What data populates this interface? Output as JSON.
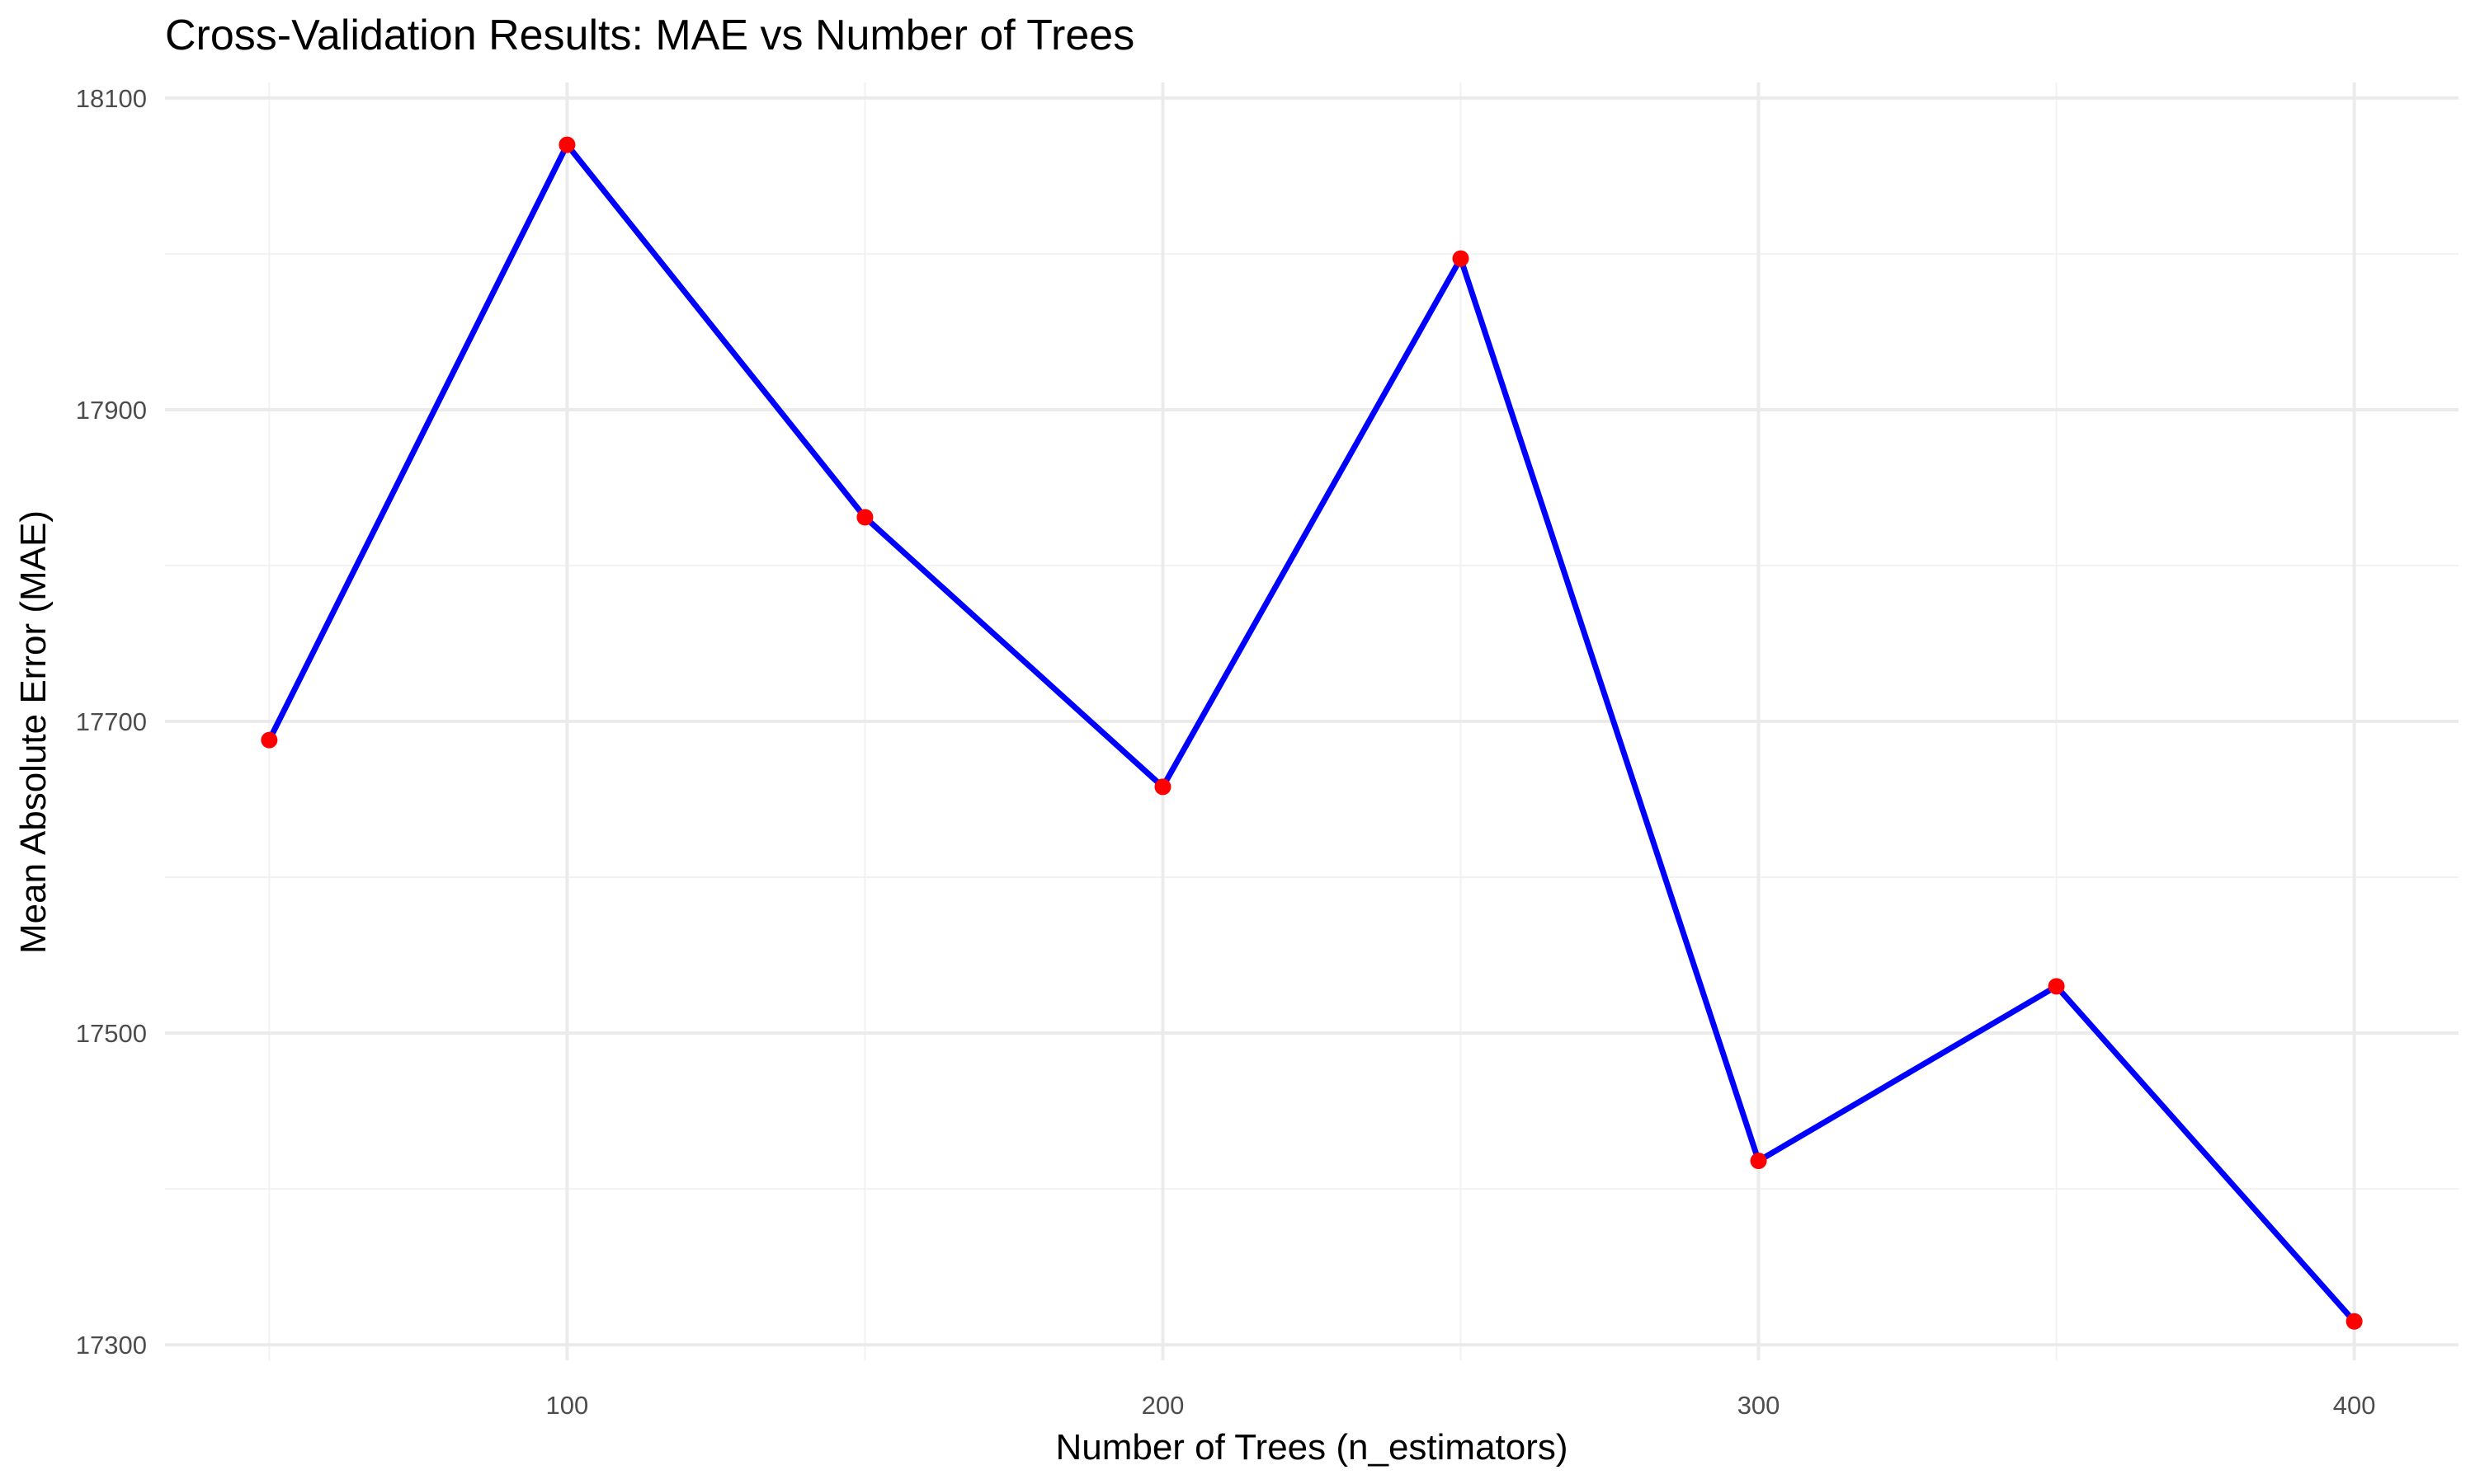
{
  "chart_data": {
    "type": "line",
    "title": "Cross-Validation Results: MAE vs Number of Trees",
    "xlabel": "Number of Trees (n_estimators)",
    "ylabel": "Mean Absolute Error (MAE)",
    "x": [
      50,
      100,
      150,
      200,
      250,
      300,
      350,
      400
    ],
    "y": [
      17688,
      18070,
      17831,
      17658,
      17997,
      17418,
      17530,
      17315
    ],
    "xlim": [
      32.5,
      417.5
    ],
    "ylim": [
      17290,
      18110
    ],
    "xticks": [
      100,
      200,
      300,
      400
    ],
    "xtick_labels": [
      "100",
      "200",
      "300",
      "400"
    ],
    "xminor": [
      50,
      150,
      250,
      350
    ],
    "yticks": [
      17300,
      17500,
      17700,
      17900,
      18100
    ],
    "ytick_labels": [
      "17300",
      "17500",
      "17700",
      "17900",
      "18100"
    ],
    "yminor": [
      17400,
      17600,
      17800,
      18000
    ],
    "grid": true,
    "legend": "none",
    "line_color": "#0000ff",
    "point_color": "#ff0000",
    "background": "#ffffff"
  }
}
